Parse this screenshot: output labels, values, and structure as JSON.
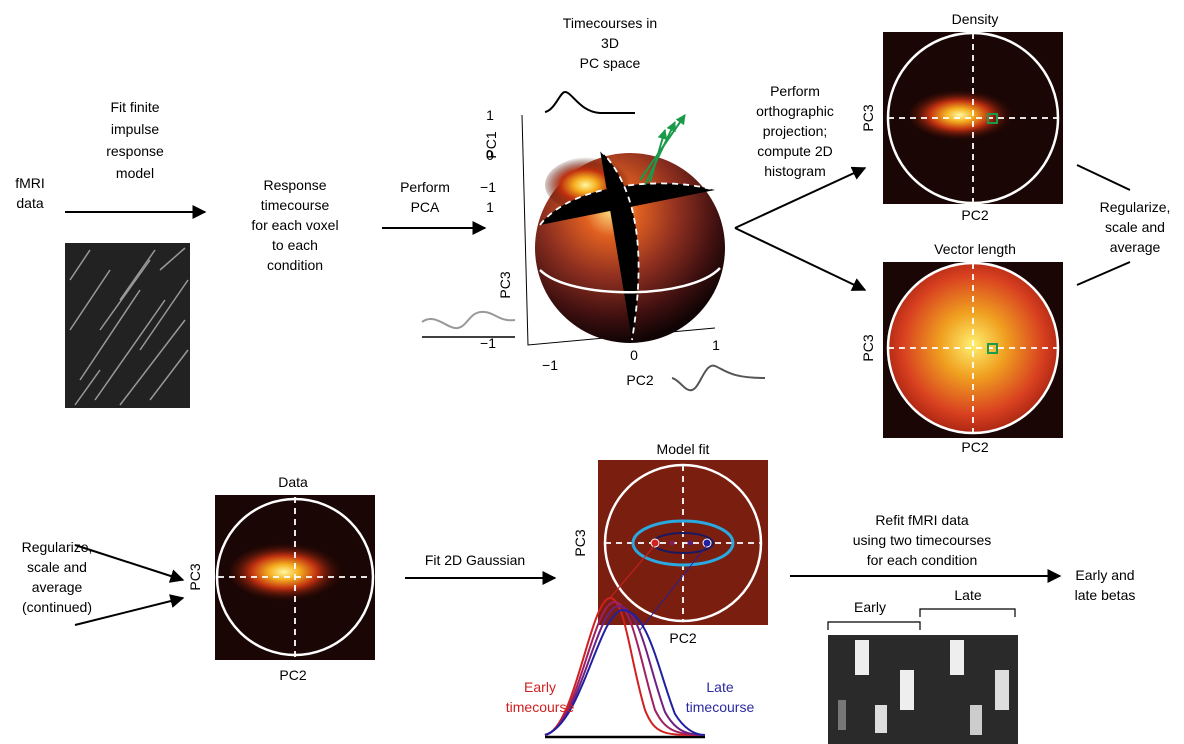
{
  "steps": {
    "fmri": [
      "fMRI",
      "data"
    ],
    "fit_fir": [
      "Fit finite",
      "impulse",
      "response",
      "model"
    ],
    "response": [
      "Response",
      "timecourse",
      "for each voxel",
      "to each",
      "condition"
    ],
    "pca": [
      "Perform",
      "PCA"
    ],
    "timecourses_3d": [
      "Timecourses in",
      "3D",
      "PC space"
    ],
    "projection": [
      "Perform",
      "orthographic",
      "projection;",
      "compute 2D",
      "histogram"
    ],
    "regularize": [
      "Regularize,",
      "scale and",
      "average"
    ],
    "regularize_cont": [
      "Regularize,",
      "scale and",
      "average",
      "(continued)"
    ],
    "fit_gaussian": "Fit 2D Gaussian",
    "refit": [
      "Refit fMRI data",
      "using two timecourses",
      "for each condition"
    ],
    "betas": [
      "Early and",
      "late betas"
    ]
  },
  "pca_plot": {
    "pc1": "PC1",
    "pc3": "PC3",
    "pc2": "PC2",
    "pc1_ticks": [
      "1",
      "0",
      "−1"
    ],
    "pc3_ticks": [
      "1",
      "−1"
    ],
    "pc2_ticks": [
      "−1",
      "0",
      "1"
    ]
  },
  "panels": {
    "density": {
      "title": "Density",
      "ylabel": "PC3",
      "xlabel": "PC2"
    },
    "vector_length": {
      "title": "Vector length",
      "ylabel": "PC3",
      "xlabel": "PC2"
    },
    "data": {
      "title": "Data",
      "ylabel": "PC3",
      "xlabel": "PC2"
    },
    "model_fit": {
      "title": "Model fit",
      "ylabel": "PC3",
      "xlabel": "PC2"
    }
  },
  "timecourses": {
    "early": [
      "Early",
      "timecourse"
    ],
    "late": [
      "Late",
      "timecourse"
    ]
  },
  "betas_image": {
    "early": "Early",
    "late": "Late"
  }
}
